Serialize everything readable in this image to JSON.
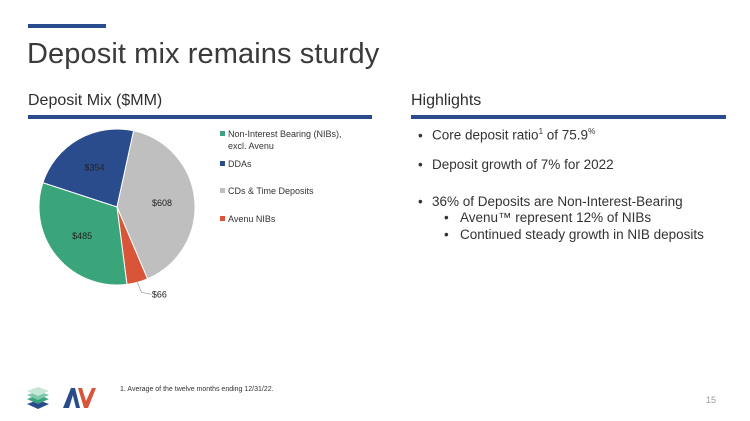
{
  "page": {
    "title": "Deposit mix remains sturdy",
    "left_heading": "Deposit Mix ($MM)",
    "right_heading": "Highlights",
    "footnote": "1.   Average of the twelve months ending 12/31/22.",
    "page_number": "15"
  },
  "highlights": {
    "b0_pre": "Core deposit ratio",
    "b0_sup": "1",
    "b0_mid": " of 75.9",
    "b0_sup2": "%",
    "b1": "Deposit growth of 7% for 2022",
    "b2": "36% of Deposits are Non-Interest-Bearing",
    "s0": "Avenu™ represent 12% of NIBs",
    "s1": "Continued steady growth in NIB deposits",
    "bullet_glyph": "•"
  },
  "chart_data": {
    "type": "pie",
    "title": "Deposit Mix ($MM)",
    "categories": [
      "Non-Interest Bearing (NIBs), excl. Avenu",
      "DDAs",
      "CDs & Time Deposits",
      "Avenu NIBs"
    ],
    "legend": [
      [
        "Non-Interest Bearing (NIBs),",
        "excl. Avenu"
      ],
      [
        "DDAs"
      ],
      [
        "CDs & Time Deposits"
      ],
      [
        "Avenu NIBs"
      ]
    ],
    "values": [
      485,
      354,
      608,
      66
    ],
    "data_labels": [
      "$485",
      "$354",
      "$608",
      "$66"
    ],
    "colors": [
      "#3aa57a",
      "#2b4c8c",
      "#bfbfbf",
      "#d9553a"
    ],
    "legend_position": "right"
  }
}
